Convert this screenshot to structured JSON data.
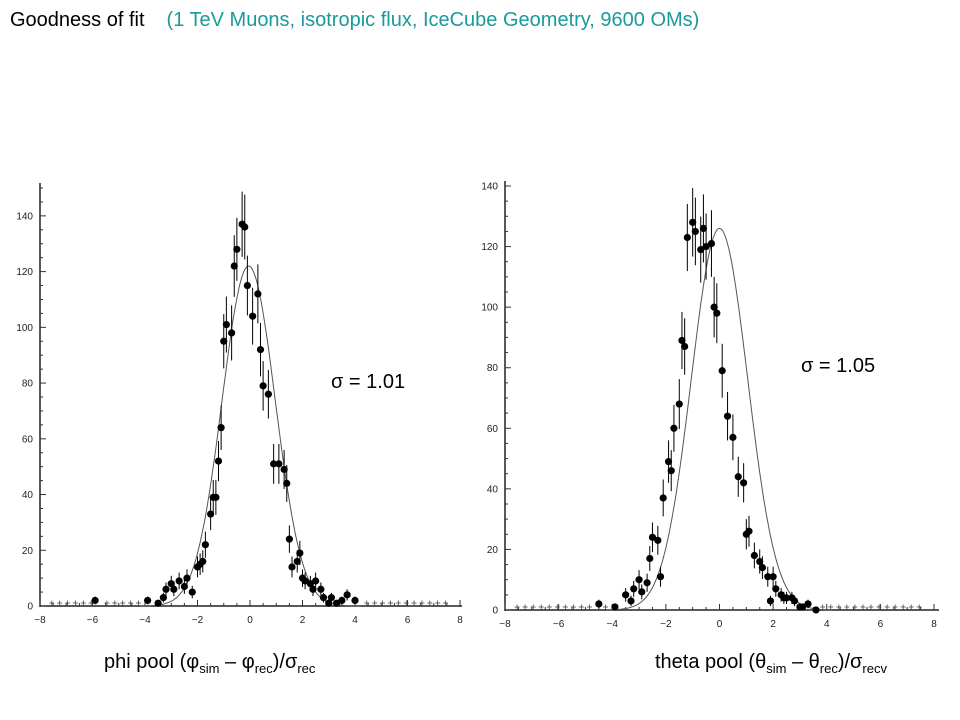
{
  "header": {
    "title": "Goodness of fit",
    "subtitle": "(1 TeV Muons, isotropic flux, IceCube Geometry, 9600 OMs)"
  },
  "colors": {
    "subtitle": "#1a9a9a",
    "markers": "#000000",
    "fit_curve": "#555555"
  },
  "chart_data": [
    {
      "type": "scatter",
      "xlim": [
        -8,
        8
      ],
      "ylim": [
        0,
        150
      ],
      "xticks": [
        -8,
        -6,
        -4,
        -2,
        0,
        2,
        4,
        6,
        8
      ],
      "yticks": [
        0,
        20,
        40,
        60,
        80,
        100,
        120,
        140
      ],
      "grid": false,
      "annotation": "σ = 1.01",
      "caption": {
        "prefix": "phi pool (φ",
        "s1": "sim",
        "mid1": " – φ",
        "s2": "rec",
        "mid2": ")/σ",
        "s3": "rec",
        "suffix": ""
      },
      "fit": {
        "amplitude": 122,
        "mean": -0.05,
        "sigma": 1.01
      },
      "series": [
        {
          "x": [
            -5.9,
            -3.9,
            -3.5,
            -3.3,
            -3.2,
            -3.0,
            -2.9,
            -2.7,
            -2.5,
            -2.4,
            -2.2,
            -2.0,
            -1.9,
            -1.8,
            -1.7,
            -1.5,
            -1.4,
            -1.3,
            -1.2,
            -1.1,
            -1.0,
            -0.9,
            -0.7,
            -0.6,
            -0.5,
            -0.3,
            -0.2,
            -0.1,
            0.1,
            0.3,
            0.4,
            0.5,
            0.7,
            0.9,
            1.1,
            1.3,
            1.4,
            1.5,
            1.6,
            1.8,
            1.9,
            2.0,
            2.1,
            2.3,
            2.4,
            2.5,
            2.7,
            2.8,
            3.0,
            3.1,
            3.3,
            3.5,
            3.7,
            4.0
          ],
          "y": [
            2,
            2,
            1,
            3,
            6,
            8,
            6,
            9,
            7,
            10,
            5,
            14,
            15,
            16,
            22,
            33,
            39,
            39,
            52,
            64,
            95,
            101,
            98,
            122,
            128,
            137,
            136,
            115,
            104,
            112,
            92,
            79,
            76,
            51,
            51,
            49,
            44,
            24,
            14,
            16,
            19,
            10,
            9,
            8,
            6,
            9,
            6,
            3,
            1,
            3,
            1,
            2,
            4,
            2
          ]
        }
      ]
    },
    {
      "type": "scatter",
      "xlim": [
        -8,
        8
      ],
      "ylim": [
        0,
        140
      ],
      "xticks": [
        -8,
        -6,
        -4,
        -2,
        0,
        2,
        4,
        6,
        8
      ],
      "yticks": [
        0,
        20,
        40,
        60,
        80,
        100,
        120,
        140
      ],
      "grid": false,
      "annotation": "σ = 1.05",
      "caption": {
        "prefix": "theta pool (θ",
        "s1": "sim",
        "mid1": " – θ",
        "s2": "rec",
        "mid2": ")/σ",
        "s3": "recv",
        "suffix": ""
      },
      "fit": {
        "amplitude": 126,
        "mean": 0.0,
        "sigma": 1.05
      },
      "series": [
        {
          "x": [
            -4.5,
            -3.9,
            -3.5,
            -3.3,
            -3.2,
            -3.0,
            -2.9,
            -2.7,
            -2.6,
            -2.5,
            -2.3,
            -2.2,
            -2.1,
            -1.9,
            -1.8,
            -1.7,
            -1.5,
            -1.4,
            -1.3,
            -1.2,
            -1.0,
            -0.9,
            -0.7,
            -0.6,
            -0.5,
            -0.3,
            -0.2,
            -0.1,
            0.1,
            0.3,
            0.5,
            0.7,
            0.9,
            1.0,
            1.1,
            1.3,
            1.5,
            1.6,
            1.8,
            1.9,
            2.0,
            2.1,
            2.3,
            2.4,
            2.5,
            2.7,
            2.8,
            3.0,
            3.1,
            3.3,
            3.6
          ],
          "y": [
            2,
            1,
            5,
            3,
            7,
            10,
            6,
            9,
            17,
            24,
            23,
            11,
            37,
            49,
            46,
            60,
            68,
            89,
            87,
            123,
            128,
            125,
            119,
            126,
            120,
            121,
            100,
            98,
            79,
            64,
            57,
            44,
            42,
            25,
            26,
            18,
            16,
            14,
            11,
            3,
            11,
            7,
            5,
            4,
            4,
            4,
            3,
            1,
            1,
            2,
            0
          ]
        }
      ]
    }
  ]
}
